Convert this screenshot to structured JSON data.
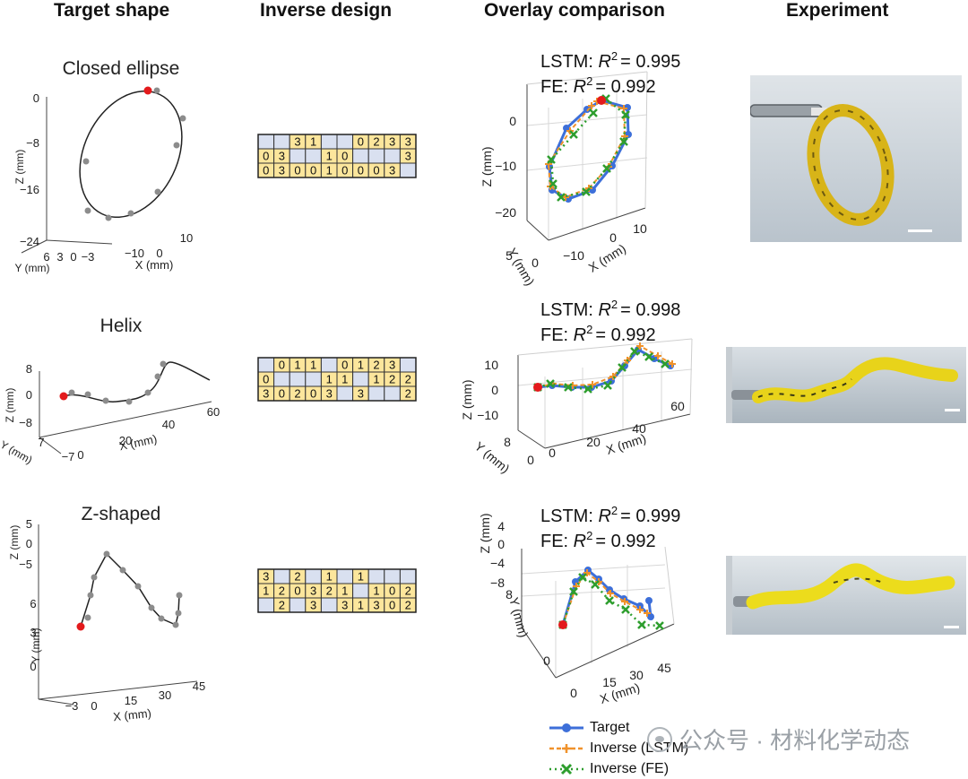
{
  "headers": {
    "target_shape": "Target shape",
    "inverse_design": "Inverse design",
    "overlay_comparison": "Overlay comparison",
    "experiment": "Experiment"
  },
  "rows": [
    {
      "shape_name": "Closed ellipse",
      "lstm_label": "LSTM: ",
      "lstm_value": "= 0.995",
      "fe_label": "FE: ",
      "fe_value": "= 0.992",
      "r2_symbol": "R",
      "r2_sup": "2",
      "grid": [
        [
          "",
          "",
          "3",
          "1",
          "",
          "",
          "0",
          "2",
          "3",
          "3"
        ],
        [
          "0",
          "3",
          "",
          "",
          "1",
          "0",
          "",
          "",
          "",
          "3"
        ],
        [
          "0",
          "3",
          "0",
          "0",
          "1",
          "0",
          "0",
          "0",
          "3",
          ""
        ]
      ],
      "target_axes": {
        "z_label": "Z (mm)",
        "z_ticks": [
          "0",
          "−8",
          "−16",
          "−24"
        ],
        "y_label": "Y (mm)",
        "y_ticks": [
          "6",
          "3",
          "0",
          "−3"
        ],
        "x_label": "X (mm)",
        "x_ticks": [
          "−10",
          "0",
          "10"
        ]
      },
      "overlay_axes": {
        "z_label": "Z (mm)",
        "z_ticks": [
          "0",
          "−10",
          "−20"
        ],
        "y_label": "Y (mm)",
        "y_ticks": [
          "5",
          "0"
        ],
        "x_label": "X (mm)",
        "x_ticks": [
          "−10",
          "0",
          "10"
        ]
      }
    },
    {
      "shape_name": "Helix",
      "lstm_label": "LSTM: ",
      "lstm_value": "= 0.998",
      "fe_label": "FE: ",
      "fe_value": "= 0.992",
      "r2_symbol": "R",
      "r2_sup": "2",
      "grid": [
        [
          "",
          "0",
          "1",
          "1",
          "",
          "0",
          "1",
          "2",
          "3",
          ""
        ],
        [
          "0",
          "",
          "",
          "",
          "1",
          "1",
          "",
          "1",
          "2",
          "2"
        ],
        [
          "3",
          "0",
          "2",
          "0",
          "3",
          "",
          "3",
          "",
          "",
          "2"
        ]
      ],
      "target_axes": {
        "z_label": "Z (mm)",
        "z_ticks": [
          "8",
          "0",
          "−8"
        ],
        "y_label": "Y (mm)",
        "y_ticks": [
          "7",
          "−7"
        ],
        "x_label": "X (mm)",
        "x_ticks": [
          "0",
          "20",
          "40",
          "60"
        ]
      },
      "overlay_axes": {
        "z_label": "Z (mm)",
        "z_ticks": [
          "10",
          "0",
          "−10"
        ],
        "y_label": "Y (mm)",
        "y_ticks": [
          "8",
          "0"
        ],
        "x_label": "X (mm)",
        "x_ticks": [
          "0",
          "20",
          "40",
          "60"
        ]
      }
    },
    {
      "shape_name": "Z-shaped",
      "lstm_label": "LSTM: ",
      "lstm_value": "= 0.999",
      "fe_label": "FE: ",
      "fe_value": "= 0.992",
      "r2_symbol": "R",
      "r2_sup": "2",
      "grid": [
        [
          "3",
          "",
          "2",
          "",
          "1",
          "",
          "1",
          "",
          "",
          ""
        ],
        [
          "1",
          "2",
          "0",
          "3",
          "2",
          "1",
          "",
          "1",
          "0",
          "2"
        ],
        [
          "",
          "2",
          "",
          "3",
          "",
          "3",
          "1",
          "3",
          "0",
          "2"
        ]
      ],
      "target_axes": {
        "z_label": "Z (mm)",
        "z_ticks": [
          "5",
          "0",
          "−5"
        ],
        "y_label": "Y (mm)",
        "y_ticks": [
          "6",
          "3",
          "0"
        ],
        "x_label": "X (mm)",
        "x_ticks": [
          "−3",
          "0",
          "15",
          "30",
          "45"
        ]
      },
      "overlay_axes": {
        "z_label": "Z (mm)",
        "z_ticks": [
          "4",
          "0",
          "−4",
          "−8"
        ],
        "y_label": "Y (mm)",
        "y_ticks": [
          "8",
          "0"
        ],
        "x_label": "X (mm)",
        "x_ticks": [
          "0",
          "15",
          "30",
          "45"
        ]
      }
    }
  ],
  "legend": {
    "target": "Target",
    "inverse_lstm": "Inverse (LSTM)",
    "inverse_fe": "Inverse (FE)"
  },
  "watermark": "公众号 · 材料化学动态",
  "colors": {
    "target": "#3d6fd9",
    "lstm": "#f0922b",
    "fe": "#2e9e2e",
    "highlight": "#e31a1c",
    "grid_filled": "#fce69c",
    "grid_empty": "#d9e0f0",
    "curve_points": "#8c8c8c"
  }
}
